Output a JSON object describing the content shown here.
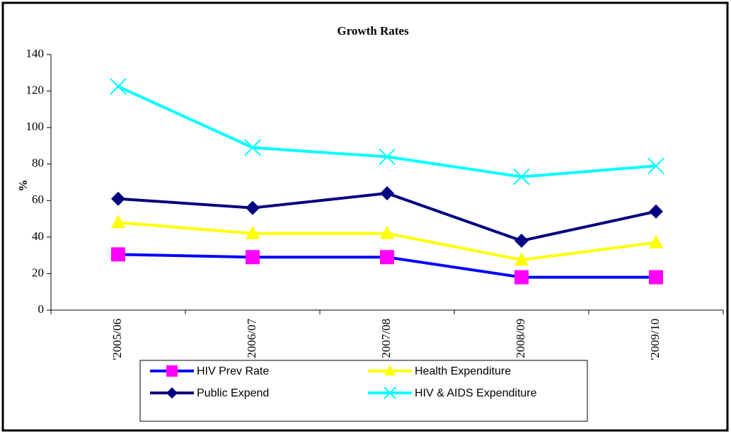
{
  "chart_data": {
    "type": "line",
    "title": "Growth Rates",
    "y_label": "%",
    "categories": [
      "'2005/06",
      "2006/07",
      "2007/08",
      "2008/09",
      "'2009/10"
    ],
    "ylim": [
      0,
      140
    ],
    "yticks": [
      0,
      20,
      40,
      60,
      80,
      100,
      120,
      140
    ],
    "series": [
      {
        "name": "HIV Prev Rate",
        "color": "#0000ff",
        "marker_color": "#ff00ff",
        "marker": "square",
        "values": [
          30.5,
          29,
          29,
          18,
          18
        ]
      },
      {
        "name": "Health Expenditure",
        "color": "#ffff00",
        "marker_color": "#ffff00",
        "marker": "triangle",
        "values": [
          48,
          42,
          42,
          27.5,
          37
        ]
      },
      {
        "name": "Public Expend",
        "color": "#000080",
        "marker_color": "#000080",
        "marker": "diamond",
        "values": [
          61,
          56,
          64,
          38,
          54
        ]
      },
      {
        "name": "HIV & AIDS Expenditure",
        "color": "#00ffff",
        "marker_color": "#00ffff",
        "marker": "x",
        "values": [
          122.5,
          89,
          84,
          73,
          79
        ]
      }
    ]
  }
}
